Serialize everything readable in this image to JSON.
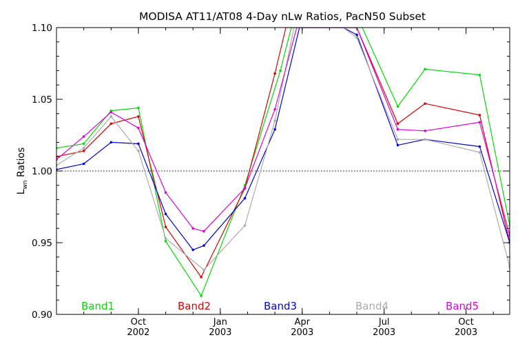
{
  "chart_data": {
    "type": "line",
    "title": "MODISA AT11/AT08 4-Day nLw Ratios, PacN50 Subset",
    "ylabel_main": "L",
    "ylabel_sub": "wn",
    "ylabel_rest": " Ratios",
    "xlabel": "",
    "ylim": [
      0.9,
      1.1
    ],
    "y_ticks": [
      0.9,
      0.95,
      1.0,
      1.05,
      1.1
    ],
    "y_tick_labels": [
      "0.90",
      "0.95",
      "1.00",
      "1.05",
      "1.10"
    ],
    "x_ticks": [
      {
        "x": 3,
        "line1": "Oct",
        "line2": "2002"
      },
      {
        "x": 6,
        "line1": "Jan",
        "line2": "2003"
      },
      {
        "x": 9,
        "line1": "Apr",
        "line2": "2003"
      },
      {
        "x": 12,
        "line1": "Jul",
        "line2": "2003"
      },
      {
        "x": 15,
        "line1": "Oct",
        "line2": "2003"
      }
    ],
    "x_range_months_from_jul2002": [
      0.0,
      16.6
    ],
    "reference_line": 1.0,
    "grid": false,
    "legend_placement": "bottom inside plot",
    "series": [
      {
        "name": "Band1",
        "color": "#00dd00",
        "points": [
          [
            0.0,
            1.016
          ],
          [
            1.0,
            1.019
          ],
          [
            2.0,
            1.042
          ],
          [
            3.0,
            1.044
          ],
          [
            4.0,
            0.951
          ],
          [
            5.3,
            0.913
          ],
          [
            6.9,
            0.99
          ],
          [
            8.2,
            1.07
          ],
          [
            8.6,
            1.1
          ],
          [
            10.5,
            1.1
          ],
          [
            11.2,
            1.1
          ],
          [
            12.5,
            1.045
          ],
          [
            13.5,
            1.071
          ],
          [
            15.5,
            1.067
          ],
          [
            16.6,
            0.962
          ]
        ]
      },
      {
        "name": "Band2",
        "color": "#dd0000",
        "points": [
          [
            0.0,
            1.01
          ],
          [
            1.0,
            1.014
          ],
          [
            2.0,
            1.033
          ],
          [
            3.0,
            1.038
          ],
          [
            4.0,
            0.961
          ],
          [
            5.3,
            0.926
          ],
          [
            6.9,
            0.988
          ],
          [
            8.0,
            1.068
          ],
          [
            8.4,
            1.1
          ],
          [
            10.5,
            1.1
          ],
          [
            11.0,
            1.1
          ],
          [
            12.5,
            1.033
          ],
          [
            13.5,
            1.047
          ],
          [
            15.5,
            1.039
          ],
          [
            16.6,
            0.95
          ]
        ]
      },
      {
        "name": "Band3",
        "color": "#0000dd",
        "points": [
          [
            0.0,
            1.001
          ],
          [
            1.0,
            1.005
          ],
          [
            2.0,
            1.02
          ],
          [
            3.0,
            1.019
          ],
          [
            4.0,
            0.97
          ],
          [
            5.0,
            0.945
          ],
          [
            5.4,
            0.948
          ],
          [
            6.9,
            0.981
          ],
          [
            8.0,
            1.029
          ],
          [
            8.9,
            1.1
          ],
          [
            10.5,
            1.1
          ],
          [
            11.0,
            1.095
          ],
          [
            12.5,
            1.018
          ],
          [
            13.5,
            1.022
          ],
          [
            15.5,
            1.017
          ],
          [
            16.6,
            0.95
          ]
        ]
      },
      {
        "name": "Band4",
        "color": "#aaaaaa",
        "points": [
          [
            0.0,
            1.004
          ],
          [
            1.0,
            1.016
          ],
          [
            2.0,
            1.038
          ],
          [
            3.0,
            1.014
          ],
          [
            4.0,
            0.953
          ],
          [
            5.4,
            0.931
          ],
          [
            6.9,
            0.962
          ],
          [
            8.0,
            1.035
          ],
          [
            8.7,
            1.1
          ],
          [
            10.5,
            1.1
          ],
          [
            11.0,
            1.093
          ],
          [
            12.5,
            1.022
          ],
          [
            13.5,
            1.022
          ],
          [
            15.5,
            1.013
          ],
          [
            16.6,
            0.933
          ]
        ]
      },
      {
        "name": "Band5",
        "color": "#dd00dd",
        "points": [
          [
            0.0,
            1.008
          ],
          [
            1.0,
            1.024
          ],
          [
            2.0,
            1.041
          ],
          [
            3.0,
            1.03
          ],
          [
            4.0,
            0.985
          ],
          [
            5.0,
            0.96
          ],
          [
            5.4,
            0.958
          ],
          [
            6.9,
            0.988
          ],
          [
            8.0,
            1.043
          ],
          [
            8.8,
            1.1
          ],
          [
            10.5,
            1.1
          ],
          [
            11.0,
            1.1
          ],
          [
            12.5,
            1.029
          ],
          [
            13.5,
            1.028
          ],
          [
            15.5,
            1.034
          ],
          [
            16.6,
            0.955
          ]
        ]
      }
    ]
  }
}
